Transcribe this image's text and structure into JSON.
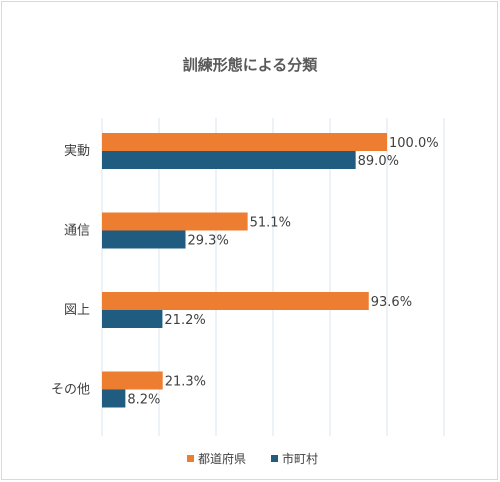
{
  "chart_data": {
    "type": "bar",
    "orientation": "horizontal",
    "title": "訓練形態による分類",
    "categories": [
      "実動",
      "通信",
      "図上",
      "その他"
    ],
    "series": [
      {
        "name": "都道府県",
        "values": [
          100.0,
          51.1,
          93.6,
          21.3
        ],
        "value_labels": [
          "100.0%",
          "51.1%",
          "93.6%",
          "21.3%"
        ],
        "color": "#ED7D31"
      },
      {
        "name": "市町村",
        "values": [
          89.0,
          29.3,
          21.2,
          8.2
        ],
        "value_labels": [
          "89.0%",
          "29.3%",
          "21.2%",
          "8.2%"
        ],
        "color": "#1F5C7F"
      }
    ],
    "xlim": [
      0,
      120
    ],
    "grid": true,
    "legend": "bottom",
    "gridline_color": "#D9E4F2"
  }
}
